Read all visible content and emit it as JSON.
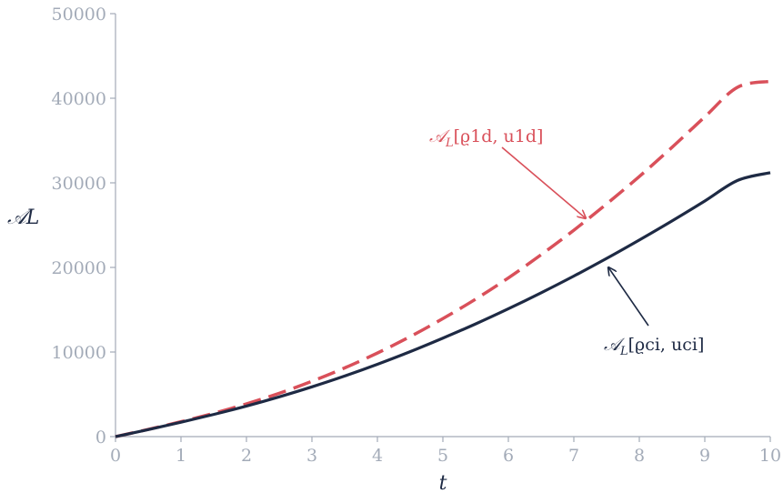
{
  "chart_data": {
    "type": "line",
    "xlabel": "t",
    "ylabel": "𝒜L",
    "xlim": [
      0,
      10
    ],
    "ylim": [
      0,
      50000
    ],
    "x_ticks": [
      "0",
      "1",
      "2",
      "3",
      "4",
      "5",
      "6",
      "7",
      "8",
      "9",
      "10"
    ],
    "y_ticks": [
      "0",
      "10000",
      "20000",
      "30000",
      "40000",
      "50000"
    ],
    "x": [
      0,
      0.5,
      1,
      1.5,
      2,
      2.5,
      3,
      3.5,
      4,
      4.5,
      5,
      5.5,
      6,
      6.5,
      7,
      7.5,
      8,
      8.5,
      9,
      9.5,
      10
    ],
    "series": [
      {
        "label": "𝒜L[ϱ1d, u1d]",
        "color": "#d9505a",
        "style": "dashed",
        "values": [
          0,
          850,
          1760,
          2750,
          3870,
          5120,
          6540,
          8120,
          9880,
          11820,
          13950,
          16250,
          18760,
          21500,
          24400,
          27500,
          30750,
          34200,
          37800,
          41300,
          42000
        ]
      },
      {
        "label": "𝒜L[ϱci, uci]",
        "color": "#1e2a44",
        "style": "solid",
        "values": [
          0,
          820,
          1700,
          2620,
          3610,
          4700,
          5880,
          7160,
          8550,
          10040,
          11640,
          13320,
          15110,
          17000,
          18980,
          21060,
          23240,
          25500,
          27850,
          30280,
          31200
        ]
      }
    ],
    "annotations": [
      {
        "text_main": "𝒜",
        "text_sub": "L",
        "text_rest": "[ϱ1d, u1d]",
        "color": "#d9505a",
        "points_to": [
          7.3,
          25700
        ]
      },
      {
        "text_main": "𝒜",
        "text_sub": "L",
        "text_rest": "[ϱci, uci]",
        "color": "#1e2a44",
        "points_to": [
          7.6,
          20000
        ]
      }
    ],
    "grid": false,
    "colors": {
      "axis": "#a3abb8",
      "red": "#d9505a",
      "navy": "#1e2a44"
    }
  }
}
